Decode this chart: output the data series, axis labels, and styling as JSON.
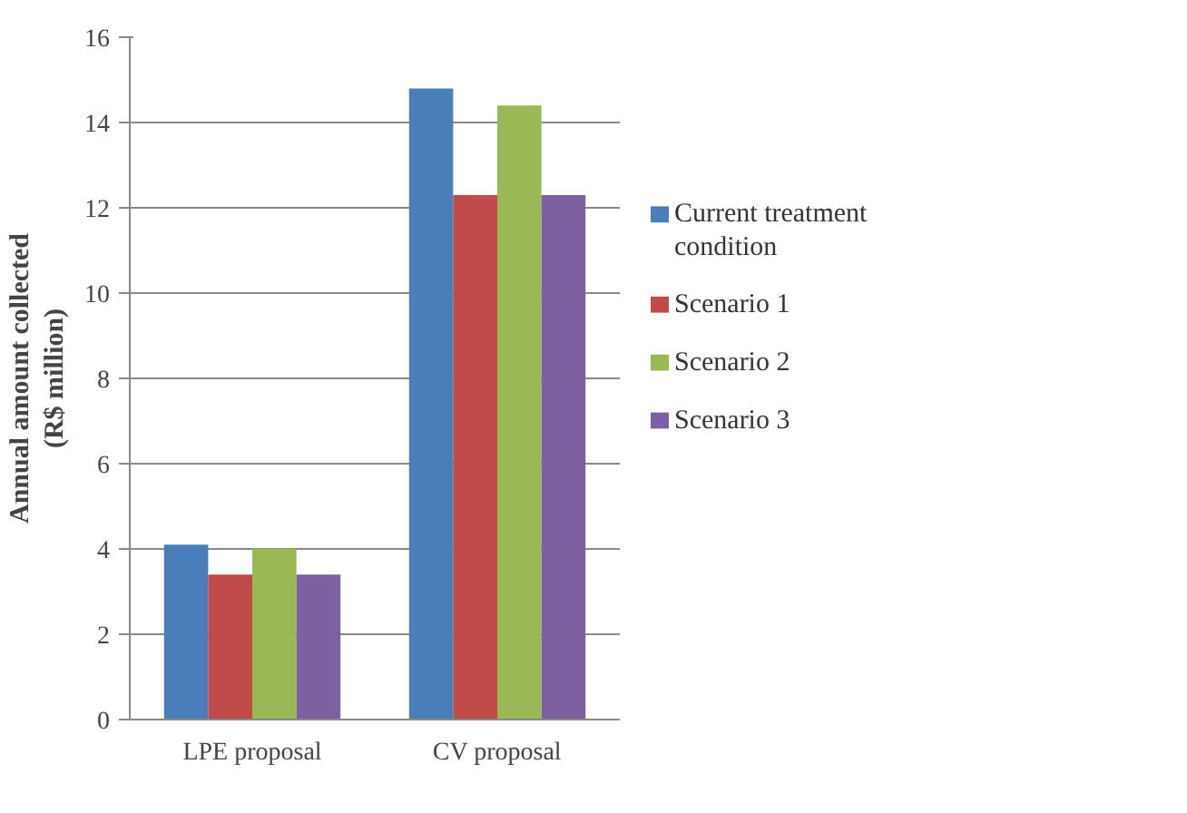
{
  "chart_data": {
    "type": "bar",
    "ylabel": "Annual amount collected\n(R$ million)",
    "categories": [
      "LPE proposal",
      "CV proposal"
    ],
    "series": [
      {
        "name": "Current treatment\ncondition",
        "color": "#4a7ebb",
        "values": [
          4.1,
          14.8
        ]
      },
      {
        "name": "Scenario 1",
        "color": "#be4b48",
        "values": [
          3.4,
          12.3
        ]
      },
      {
        "name": "Scenario 2",
        "color": "#98b954",
        "values": [
          4.0,
          14.4
        ]
      },
      {
        "name": "Scenario 3",
        "color": "#7d60a0",
        "values": [
          3.4,
          12.3
        ]
      }
    ],
    "ylim": [
      0,
      16
    ],
    "yticks": [
      0,
      2,
      4,
      6,
      8,
      10,
      12,
      14,
      16
    ],
    "grid": "y",
    "legend": "right"
  }
}
